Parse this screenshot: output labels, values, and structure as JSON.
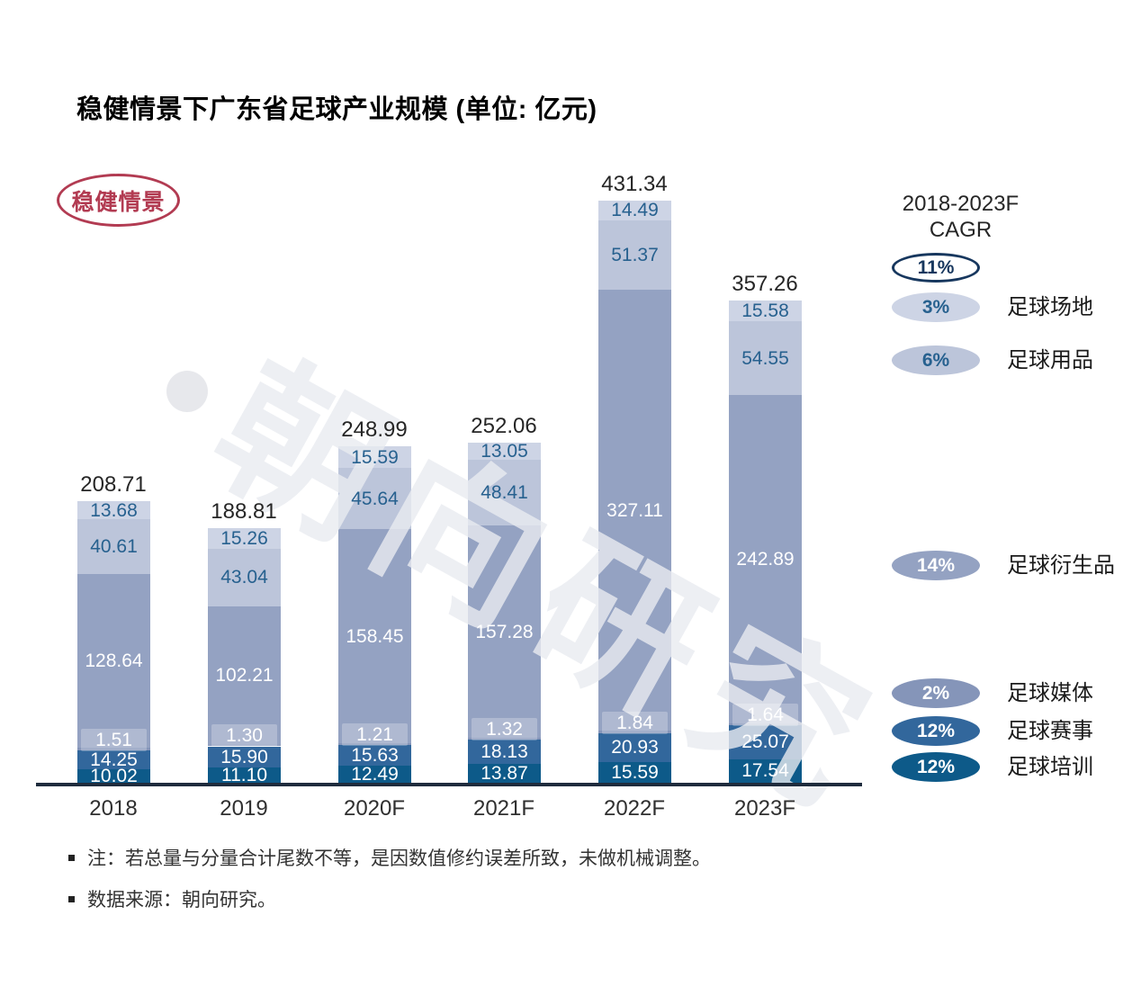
{
  "title": "稳健情景下广东省足球产业规模 (单位: 亿元)",
  "badge": {
    "text": "稳健情景",
    "color": "#b23b52"
  },
  "watermark": {
    "text": "朝向研究"
  },
  "legend": {
    "header_line1": "2018-2023F",
    "header_line2": "CAGR",
    "total_cagr": "11%",
    "total_border_color": "#17375e",
    "position": "right",
    "items": [
      {
        "cagr": "3%",
        "label": "足球场地",
        "fill": "#cdd4e5",
        "text_color": "#27618f"
      },
      {
        "cagr": "6%",
        "label": "足球用品",
        "fill": "#bcc5da",
        "text_color": "#27618f"
      },
      {
        "cagr": "14%",
        "label": "足球衍生品",
        "fill": "#94a2c2",
        "text_color": "#ffffff"
      },
      {
        "cagr": "2%",
        "label": "足球媒体",
        "fill": "#8595b9",
        "text_color": "#ffffff"
      },
      {
        "cagr": "12%",
        "label": "足球赛事",
        "fill": "#32679c",
        "text_color": "#ffffff"
      },
      {
        "cagr": "12%",
        "label": "足球培训",
        "fill": "#0d5a89",
        "text_color": "#ffffff"
      }
    ]
  },
  "chart_data": {
    "type": "bar",
    "stacked": true,
    "unit": "亿元",
    "categories": [
      "2018",
      "2019",
      "2020F",
      "2021F",
      "2022F",
      "2023F"
    ],
    "totals": [
      "208.71",
      "188.81",
      "248.99",
      "252.06",
      "431.34",
      "357.26"
    ],
    "ylim": [
      0,
      440
    ],
    "grid": false,
    "legend_position": "right",
    "series": [
      {
        "key": "training",
        "name": "足球培训",
        "cagr": "12%",
        "color": "#0d5a89",
        "label_color": "#ffffff",
        "boxed_label": false,
        "values": [
          "10.02",
          "11.10",
          "12.49",
          "13.87",
          "15.59",
          "17.54"
        ]
      },
      {
        "key": "events",
        "name": "足球赛事",
        "cagr": "12%",
        "color": "#32679c",
        "label_color": "#ffffff",
        "boxed_label": false,
        "values": [
          "14.25",
          "15.90",
          "15.63",
          "18.13",
          "20.93",
          "25.07"
        ]
      },
      {
        "key": "media",
        "name": "足球媒体",
        "cagr": "2%",
        "color": "#8595b9",
        "label_color": "#ffffff",
        "boxed_label": true,
        "values": [
          "1.51",
          "1.30",
          "1.21",
          "1.32",
          "1.84",
          "1.64"
        ]
      },
      {
        "key": "derivatives",
        "name": "足球衍生品",
        "cagr": "14%",
        "color": "#94a2c2",
        "label_color": "#ffffff",
        "boxed_label": false,
        "values": [
          "128.64",
          "102.21",
          "158.45",
          "157.28",
          "327.11",
          "242.89"
        ]
      },
      {
        "key": "goods",
        "name": "足球用品",
        "cagr": "6%",
        "color": "#bcc5da",
        "label_color": "#27618f",
        "boxed_label": false,
        "values": [
          "40.61",
          "43.04",
          "45.64",
          "48.41",
          "51.37",
          "54.55"
        ]
      },
      {
        "key": "venues",
        "name": "足球场地",
        "cagr": "3%",
        "color": "#cdd4e5",
        "label_color": "#27618f",
        "boxed_label": false,
        "values": [
          "13.68",
          "15.26",
          "15.59",
          "13.05",
          "14.49",
          "15.58"
        ]
      }
    ]
  },
  "notes": [
    "注：若总量与分量合计尾数不等，是因数值修约误差所致，未做机械调整。",
    "数据来源：朝向研究。"
  ]
}
